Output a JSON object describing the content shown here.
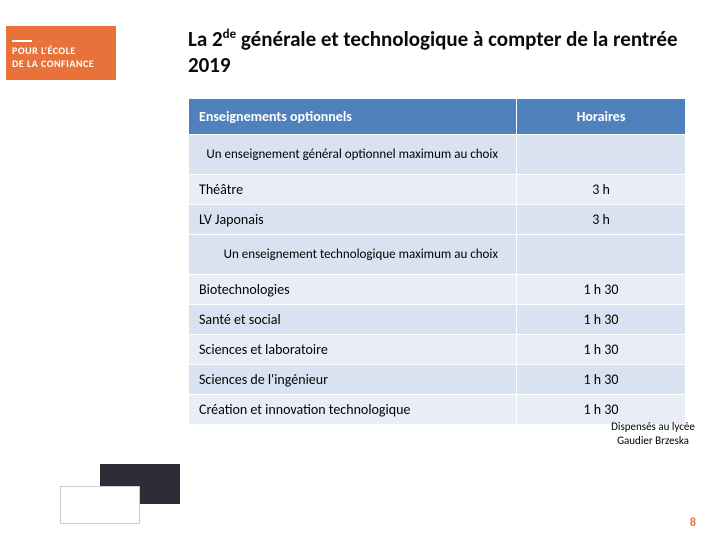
{
  "brand": {
    "line1": "POUR L'ÉCOLE",
    "line2": "DE LA CONFIANCE",
    "bg_color": "#e9713a"
  },
  "title": {
    "prefix": "La 2",
    "sup": "de",
    "rest": " générale et technologique à compter de la rentrée 2019"
  },
  "header": {
    "col1": "Enseignements optionnels",
    "col2": "Horaires",
    "bg_color": "#4f81bd"
  },
  "sections": [
    {
      "label": "Un enseignement général optionnel maximum au choix",
      "rows": [
        {
          "name": "Théâtre",
          "hours": "3 h"
        },
        {
          "name": "LV Japonais",
          "hours": "3 h"
        }
      ]
    },
    {
      "label": "Un enseignement technologique maximum au choix",
      "rows": [
        {
          "name": "Biotechnologies",
          "hours": "1 h 30"
        },
        {
          "name": "Santé et social",
          "hours": "1 h 30"
        },
        {
          "name": "Sciences et laboratoire",
          "hours": "1 h 30"
        },
        {
          "name": "Sciences de l'ingénieur",
          "hours": "1 h 30"
        },
        {
          "name": "Création et innovation technologique",
          "hours": "1 h 30"
        }
      ]
    }
  ],
  "side_note": "Dispensés au lycée Gaudier Brzeska",
  "page_number": "8",
  "colors": {
    "row_light": "#e9edf6",
    "row_alt": "#d9e2f0",
    "accent": "#e9713a",
    "deco_dark": "#2e2d37"
  }
}
